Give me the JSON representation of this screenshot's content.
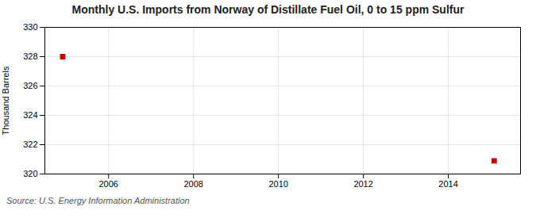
{
  "chart_data": {
    "type": "scatter",
    "title": "Monthly U.S. Imports from Norway of Distillate Fuel Oil, 0 to 15 ppm Sulfur",
    "ylabel": "Thousand Barrels",
    "source": "Source: U.S. Energy Information Administration",
    "x": [
      2004.92,
      2015.08
    ],
    "values": [
      328,
      320.9
    ],
    "color": "#cc0000",
    "marker": "square",
    "xlim": [
      2004.5,
      2015.7
    ],
    "xticks": [
      2006,
      2008,
      2010,
      2012,
      2014
    ],
    "ylim": [
      320,
      330
    ],
    "yticks": [
      320,
      322,
      324,
      326,
      328,
      330
    ],
    "grid": true
  }
}
